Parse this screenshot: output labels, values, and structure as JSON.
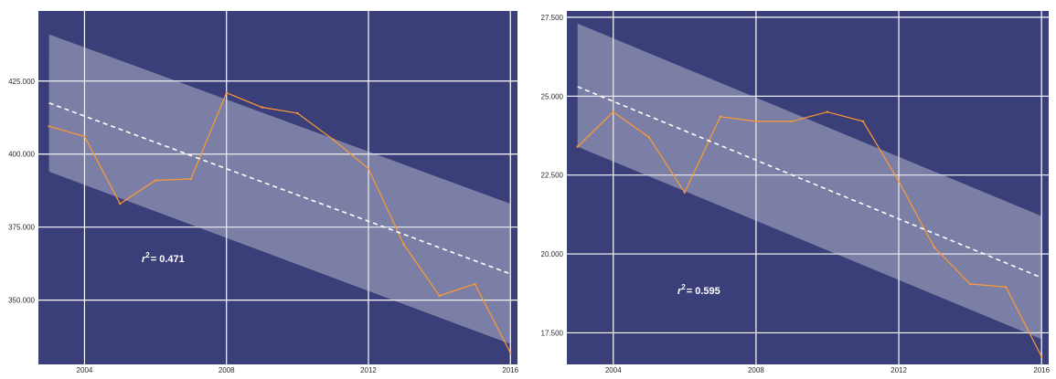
{
  "colors": {
    "panel_bg": "#3a3f7a",
    "grid": "#ffffff",
    "band": "#d8d8e0",
    "series": "#ff9933",
    "trend": "#ffffff",
    "tick_text": "#2b2b2b",
    "annotation": "#ffffff"
  },
  "chart_data": [
    {
      "type": "line",
      "x": [
        2003,
        2004,
        2005,
        2006,
        2007,
        2008,
        2009,
        2010,
        2011,
        2012,
        2013,
        2014,
        2015,
        2016
      ],
      "series": [
        {
          "values": [
            409500,
            406000,
            383000,
            391000,
            391500,
            421000,
            416000,
            414000,
            405000,
            395000,
            369000,
            351500,
            355500,
            332000
          ]
        }
      ],
      "trend": {
        "values": [
          417500,
          359000
        ]
      },
      "band": {
        "upper": [
          441000,
          383000
        ],
        "lower": [
          394000,
          335000
        ]
      },
      "annotation": {
        "label": "r² = 0.471",
        "r": "r",
        "sup": "2",
        "eq": "= 0.471"
      },
      "xticks": [
        2004,
        2008,
        2012,
        2016
      ],
      "yticks": [
        350000,
        375000,
        400000,
        425000
      ],
      "ytick_labels": [
        "350.000",
        "375.000",
        "400.000",
        "425.000"
      ],
      "xlim": [
        2002.7,
        2016.2
      ],
      "ylim": [
        328000,
        449000
      ],
      "grid": true,
      "title": "",
      "xlabel": "",
      "ylabel": ""
    },
    {
      "type": "line",
      "x": [
        2003,
        2004,
        2005,
        2006,
        2007,
        2008,
        2009,
        2010,
        2011,
        2012,
        2013,
        2014,
        2015,
        2016
      ],
      "series": [
        {
          "values": [
            23400,
            24500,
            23700,
            21950,
            24350,
            24200,
            24200,
            24500,
            24200,
            22300,
            20200,
            19050,
            18950,
            16750
          ]
        }
      ],
      "trend": {
        "values": [
          25300,
          19250
        ]
      },
      "band": {
        "upper": [
          27300,
          21200
        ],
        "lower": [
          23400,
          17300
        ]
      },
      "annotation": {
        "label": "r² = 0.595",
        "r": "r",
        "sup": "2",
        "eq": "= 0.595"
      },
      "xticks": [
        2004,
        2008,
        2012,
        2016
      ],
      "yticks": [
        17500,
        20000,
        22500,
        25000,
        27500
      ],
      "ytick_labels": [
        "17.500",
        "20.000",
        "22.500",
        "25.000",
        "27.500"
      ],
      "xlim": [
        2002.7,
        2016.2
      ],
      "ylim": [
        16500,
        27700
      ],
      "grid": true,
      "title": "",
      "xlabel": "",
      "ylabel": ""
    }
  ]
}
